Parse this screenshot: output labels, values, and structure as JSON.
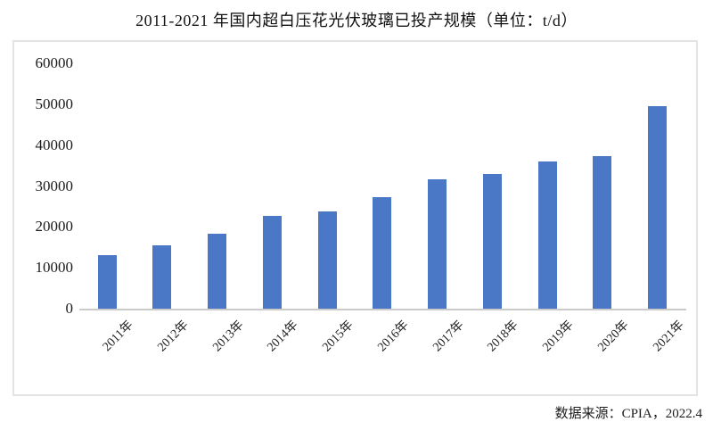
{
  "title": "2011-2021 年国内超白压花光伏玻璃已投产规模（单位：t/d）",
  "source_note": "数据来源：CPIA，2022.4",
  "colors": {
    "bar": "#4a77c6",
    "axis_line": "#cbcbcb",
    "box_border": "#e4e4e4",
    "text": "#1c1c1c"
  },
  "chart_data": {
    "type": "bar",
    "title": "2011-2021 年国内超白压花光伏玻璃已投产规模（单位：t/d）",
    "categories": [
      "2011年",
      "2012年",
      "2013年",
      "2014年",
      "2015年",
      "2016年",
      "2017年",
      "2018年",
      "2019年",
      "2020年",
      "2021年"
    ],
    "values": [
      13200,
      15500,
      18300,
      22600,
      23800,
      27300,
      31600,
      32900,
      36000,
      37400,
      49600
    ],
    "xlabel": "",
    "ylabel": "",
    "unit": "t/d",
    "ylim": [
      0,
      60000
    ],
    "yticks": [
      0,
      10000,
      20000,
      30000,
      40000,
      50000,
      60000
    ],
    "grid": false,
    "legend_position": "none",
    "bar_color": "#4a77c6",
    "x_tick_rotation_deg": 45
  }
}
